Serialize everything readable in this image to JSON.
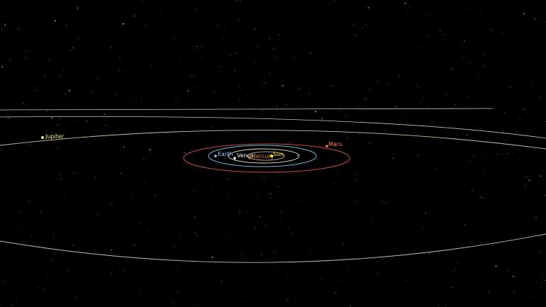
{
  "scene": {
    "background": "#000000",
    "labels": {
      "jupiter": "Jupiter",
      "earth": "Earth",
      "venus": "Venus",
      "mercury": "Mercury",
      "sun": "Sun",
      "mars": "Mars"
    },
    "colors": {
      "jupiter": "#f3f08a",
      "earth": "#9fc6ff",
      "venus": "#ffffff",
      "mercury": "#d88a3a",
      "sun": "#ffe83a",
      "mars": "#ff7a5a",
      "orbit_outer": "#d9d7b0",
      "orbit_saturn": "#bfe3ea",
      "orbit_mars": "#c94a4a",
      "orbit_earth": "#6fb7d8",
      "orbit_venus": "#e8e2c8"
    }
  }
}
